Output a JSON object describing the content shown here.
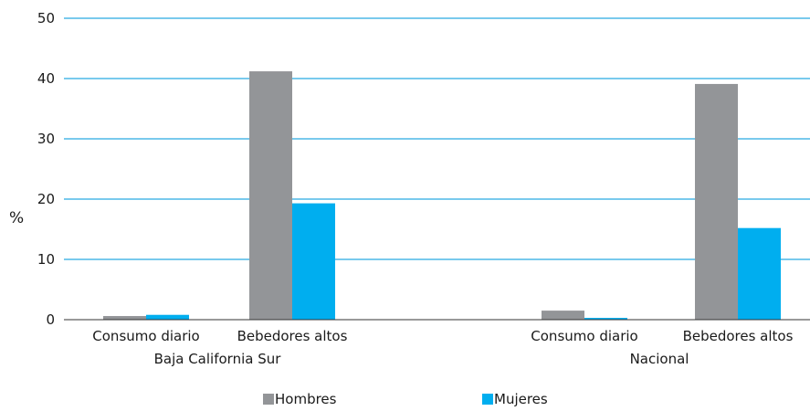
{
  "chart_data": {
    "type": "bar",
    "ylabel": "%",
    "ylim": [
      0,
      50
    ],
    "yticks": [
      0,
      10,
      20,
      30,
      40,
      50
    ],
    "grid": true,
    "legend_position": "bottom",
    "groups": [
      {
        "name": "Baja California Sur",
        "categories": [
          "Consumo diario",
          "Bebedores altos"
        ],
        "series": [
          {
            "name": "Hombres",
            "values": [
              0.6,
              41.2
            ]
          },
          {
            "name": "Mujeres",
            "values": [
              0.8,
              19.3
            ]
          }
        ]
      },
      {
        "name": "Nacional",
        "categories": [
          "Consumo diario",
          "Bebedores altos"
        ],
        "series": [
          {
            "name": "Hombres",
            "values": [
              1.5,
              39.1
            ]
          },
          {
            "name": "Mujeres",
            "values": [
              0.3,
              15.2
            ]
          }
        ]
      }
    ],
    "legend": [
      {
        "name": "Hombres",
        "color": "#939598"
      },
      {
        "name": "Mujeres",
        "color": "#00aeef"
      }
    ],
    "gridline_color": "#29abe2",
    "axis_color": "#333333"
  }
}
